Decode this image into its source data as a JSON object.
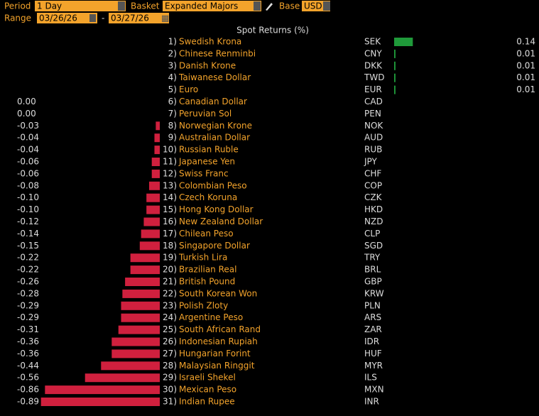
{
  "header": {
    "period_label": "Period",
    "period": "1 Day",
    "basket_label": "Basket",
    "basket": "Expanded Majors",
    "base_label": "Base",
    "base": "USD",
    "range_label": "Range",
    "range_start": "03/26/26",
    "range_sep": "-",
    "range_end": "03/27/26"
  },
  "chart_data": {
    "type": "bar",
    "title": "Spot Returns (%)",
    "ranks": [
      "1)",
      "2)",
      "3)",
      "4)",
      "5)",
      "6)",
      "7)",
      "8)",
      "9)",
      "10)",
      "11)",
      "12)",
      "13)",
      "14)",
      "15)",
      "16)",
      "17)",
      "18)",
      "19)",
      "20)",
      "21)",
      "22)",
      "23)",
      "24)",
      "25)",
      "26)",
      "27)",
      "28)",
      "29)",
      "30)",
      "31)"
    ],
    "categories": [
      "Swedish Krona",
      "Chinese Renminbi",
      "Danish Krone",
      "Taiwanese Dollar",
      "Euro",
      "Canadian Dollar",
      "Peruvian Sol",
      "Norwegian Krone",
      "Australian Dollar",
      "Russian Ruble",
      "Japanese Yen",
      "Swiss Franc",
      "Colombian Peso",
      "Czech Koruna",
      "Hong Kong Dollar",
      "New Zealand Dollar",
      "Chilean Peso",
      "Singapore Dollar",
      "Turkish Lira",
      "Brazilian Real",
      "British Pound",
      "South Korean Won",
      "Polish Zloty",
      "Argentine Peso",
      "South African Rand",
      "Indonesian Rupiah",
      "Hungarian Forint",
      "Malaysian Ringgit",
      "Israeli Shekel",
      "Mexican Peso",
      "Indian Rupee"
    ],
    "codes": [
      "SEK",
      "CNY",
      "DKK",
      "TWD",
      "EUR",
      "CAD",
      "PEN",
      "NOK",
      "AUD",
      "RUB",
      "JPY",
      "CHF",
      "COP",
      "CZK",
      "HKD",
      "NZD",
      "CLP",
      "SGD",
      "TRY",
      "BRL",
      "GBP",
      "KRW",
      "PLN",
      "ARS",
      "ZAR",
      "IDR",
      "HUF",
      "MYR",
      "ILS",
      "MXN",
      "INR"
    ],
    "values": [
      0.14,
      0.01,
      0.01,
      0.01,
      0.01,
      0,
      0,
      -0.03,
      -0.04,
      -0.04,
      -0.06,
      -0.06,
      -0.08,
      -0.1,
      -0.1,
      -0.12,
      -0.14,
      -0.15,
      -0.22,
      -0.22,
      -0.26,
      -0.28,
      -0.29,
      -0.29,
      -0.31,
      -0.36,
      -0.36,
      -0.44,
      -0.56,
      -0.86,
      -0.89
    ],
    "value_labels": [
      "0.14",
      "0.01",
      "0.01",
      "0.01",
      "0.01",
      "0.00",
      "0.00",
      "-0.03",
      "-0.04",
      "-0.04",
      "-0.06",
      "-0.06",
      "-0.08",
      "-0.10",
      "-0.10",
      "-0.12",
      "-0.14",
      "-0.15",
      "-0.22",
      "-0.22",
      "-0.26",
      "-0.28",
      "-0.29",
      "-0.29",
      "-0.31",
      "-0.36",
      "-0.36",
      "-0.44",
      "-0.56",
      "-0.86",
      "-0.89"
    ],
    "colors": {
      "positive": "#1f9a3a",
      "negative": "#d0203e"
    }
  }
}
